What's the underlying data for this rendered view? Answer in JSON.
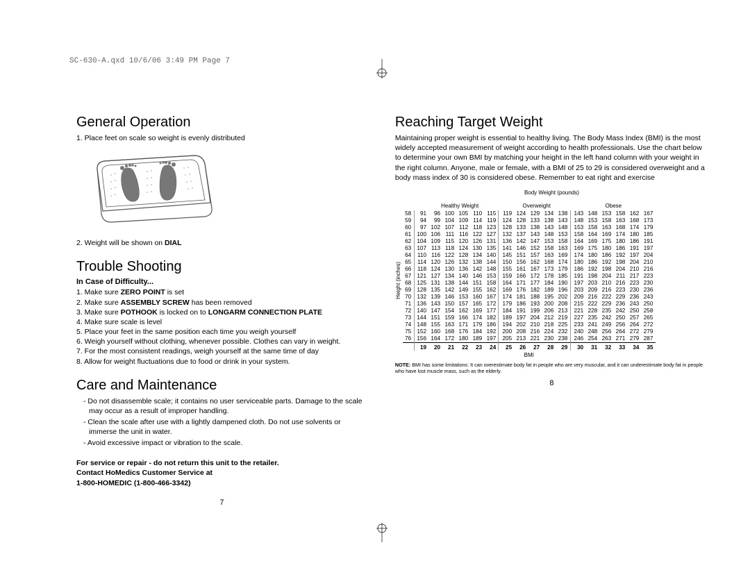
{
  "header_slug": "SC-630-A.qxd  10/6/06  3:49 PM  Page 7",
  "left": {
    "general_operation": {
      "title": "General Operation",
      "step1": "1. Place feet on scale so weight is evenly distributed",
      "step2_pre": "2. Weight will be shown on ",
      "step2_bold": "DIAL"
    },
    "troubleshooting": {
      "title": "Trouble Shooting",
      "sub": "In Case of Difficulty...",
      "items": [
        {
          "pre": "1. Make sure ",
          "b": "ZERO POINT",
          "post": " is set"
        },
        {
          "pre": "2. Make sure ",
          "b": "ASSEMBLY SCREW",
          "post": " has been removed"
        },
        {
          "pre": "3. Make sure ",
          "b": "POTHOOK",
          "mid": " is locked on to ",
          "b2": "LONGARM CONNECTION PLATE",
          "post": ""
        },
        {
          "pre": "4. Make sure scale is level",
          "b": "",
          "post": ""
        },
        {
          "pre": "5. Place your feet in the same position each time you weigh yourself",
          "b": "",
          "post": ""
        },
        {
          "pre": "6. Weigh yourself without clothing, whenever possible. Clothes can vary in weight.",
          "b": "",
          "post": ""
        },
        {
          "pre": "7. For the most consistent readings, weigh yourself at the same time of day",
          "b": "",
          "post": ""
        },
        {
          "pre": "8. Allow for weight fluctuations due to food or drink in your system.",
          "b": "",
          "post": ""
        }
      ]
    },
    "care": {
      "title": "Care and Maintenance",
      "items": [
        "Do not disassemble scale; it contains no user serviceable parts. Damage to the scale may occur as a result of improper handling.",
        "Clean the scale after use with a lightly dampened cloth. Do not use solvents or immerse the unit in water.",
        "Avoid excessive impact or vibration to the scale."
      ]
    },
    "service": {
      "l1": "For service or repair - do not return this unit to the retailer.",
      "l2": "Contact HoMedics Customer Service at",
      "l3": "1-800-HOMEDIC (1-800-466-3342)"
    },
    "page_num": "7"
  },
  "right": {
    "title": "Reaching Target Weight",
    "intro": "Maintaining proper weight is essential to healthy living. The Body Mass Index (BMI) is the most widely accepted measurement of weight according to health professionals. Use the chart below to determine your own BMI by matching your height in the left hand column with your weight in the right column. Anyone, male or female, with a BMI of 25 to 29 is considered overweight and a body mass index of 30 is considered obese. Remember to eat right and exercise",
    "bmi": {
      "body_weight_label": "Body Weight (pounds)",
      "height_label": "Height (inches)",
      "cat_labels": [
        "Healthy Weight",
        "Overweight",
        "Obese"
      ],
      "cat_widths_cols": [
        6,
        5,
        6
      ],
      "heights": [
        58,
        59,
        60,
        61,
        62,
        63,
        64,
        65,
        66,
        67,
        68,
        69,
        70,
        71,
        72,
        73,
        74,
        75,
        76
      ],
      "rows": [
        [
          91,
          96,
          100,
          105,
          110,
          115,
          119,
          124,
          129,
          134,
          138,
          143,
          148,
          153,
          158,
          162,
          167
        ],
        [
          94,
          99,
          104,
          109,
          114,
          119,
          124,
          128,
          133,
          138,
          143,
          148,
          153,
          158,
          163,
          168,
          173
        ],
        [
          97,
          102,
          107,
          112,
          118,
          123,
          128,
          133,
          138,
          143,
          148,
          153,
          158,
          163,
          168,
          174,
          179
        ],
        [
          100,
          106,
          111,
          116,
          122,
          127,
          132,
          137,
          143,
          148,
          153,
          158,
          164,
          169,
          174,
          180,
          185
        ],
        [
          104,
          109,
          115,
          120,
          126,
          131,
          136,
          142,
          147,
          153,
          158,
          164,
          169,
          175,
          180,
          186,
          191
        ],
        [
          107,
          113,
          118,
          124,
          130,
          135,
          141,
          146,
          152,
          158,
          163,
          169,
          175,
          180,
          186,
          191,
          197
        ],
        [
          110,
          116,
          122,
          128,
          134,
          140,
          145,
          151,
          157,
          163,
          169,
          174,
          180,
          186,
          192,
          197,
          204
        ],
        [
          114,
          120,
          126,
          132,
          138,
          144,
          150,
          156,
          162,
          168,
          174,
          180,
          186,
          192,
          198,
          204,
          210
        ],
        [
          118,
          124,
          130,
          136,
          142,
          148,
          155,
          161,
          167,
          173,
          179,
          186,
          192,
          198,
          204,
          210,
          216
        ],
        [
          121,
          127,
          134,
          140,
          146,
          153,
          159,
          166,
          172,
          178,
          185,
          191,
          198,
          204,
          211,
          217,
          223
        ],
        [
          125,
          131,
          138,
          144,
          151,
          158,
          164,
          171,
          177,
          184,
          190,
          197,
          203,
          210,
          216,
          223,
          230
        ],
        [
          128,
          135,
          142,
          149,
          155,
          162,
          169,
          176,
          182,
          189,
          196,
          203,
          209,
          216,
          223,
          230,
          236
        ],
        [
          132,
          139,
          146,
          153,
          160,
          167,
          174,
          181,
          188,
          195,
          202,
          209,
          216,
          222,
          229,
          236,
          243
        ],
        [
          136,
          143,
          150,
          157,
          165,
          172,
          179,
          186,
          193,
          200,
          208,
          215,
          222,
          229,
          236,
          243,
          250
        ],
        [
          140,
          147,
          154,
          162,
          169,
          177,
          184,
          191,
          199,
          206,
          213,
          221,
          228,
          235,
          242,
          250,
          258
        ],
        [
          144,
          151,
          159,
          166,
          174,
          182,
          189,
          197,
          204,
          212,
          219,
          227,
          235,
          242,
          250,
          257,
          265
        ],
        [
          148,
          155,
          163,
          171,
          179,
          186,
          194,
          202,
          210,
          218,
          225,
          233,
          241,
          249,
          256,
          264,
          272
        ],
        [
          152,
          160,
          168,
          176,
          184,
          192,
          200,
          208,
          216,
          224,
          232,
          240,
          248,
          256,
          264,
          272,
          279
        ],
        [
          156,
          164,
          172,
          180,
          189,
          197,
          205,
          213,
          221,
          230,
          238,
          246,
          254,
          263,
          271,
          279,
          287
        ]
      ],
      "bmi_values": [
        19,
        20,
        21,
        22,
        23,
        24,
        25,
        26,
        27,
        28,
        29,
        30,
        31,
        32,
        33,
        34,
        35
      ],
      "bmi_footer": "BMI"
    },
    "note_b": "NOTE:",
    "note": " BMI has some limitations: It can overestimate body fat in people who are very muscular, and it can underestimate body fat in people who have lost muscle mass, such as the elderly.",
    "page_num": "8"
  }
}
